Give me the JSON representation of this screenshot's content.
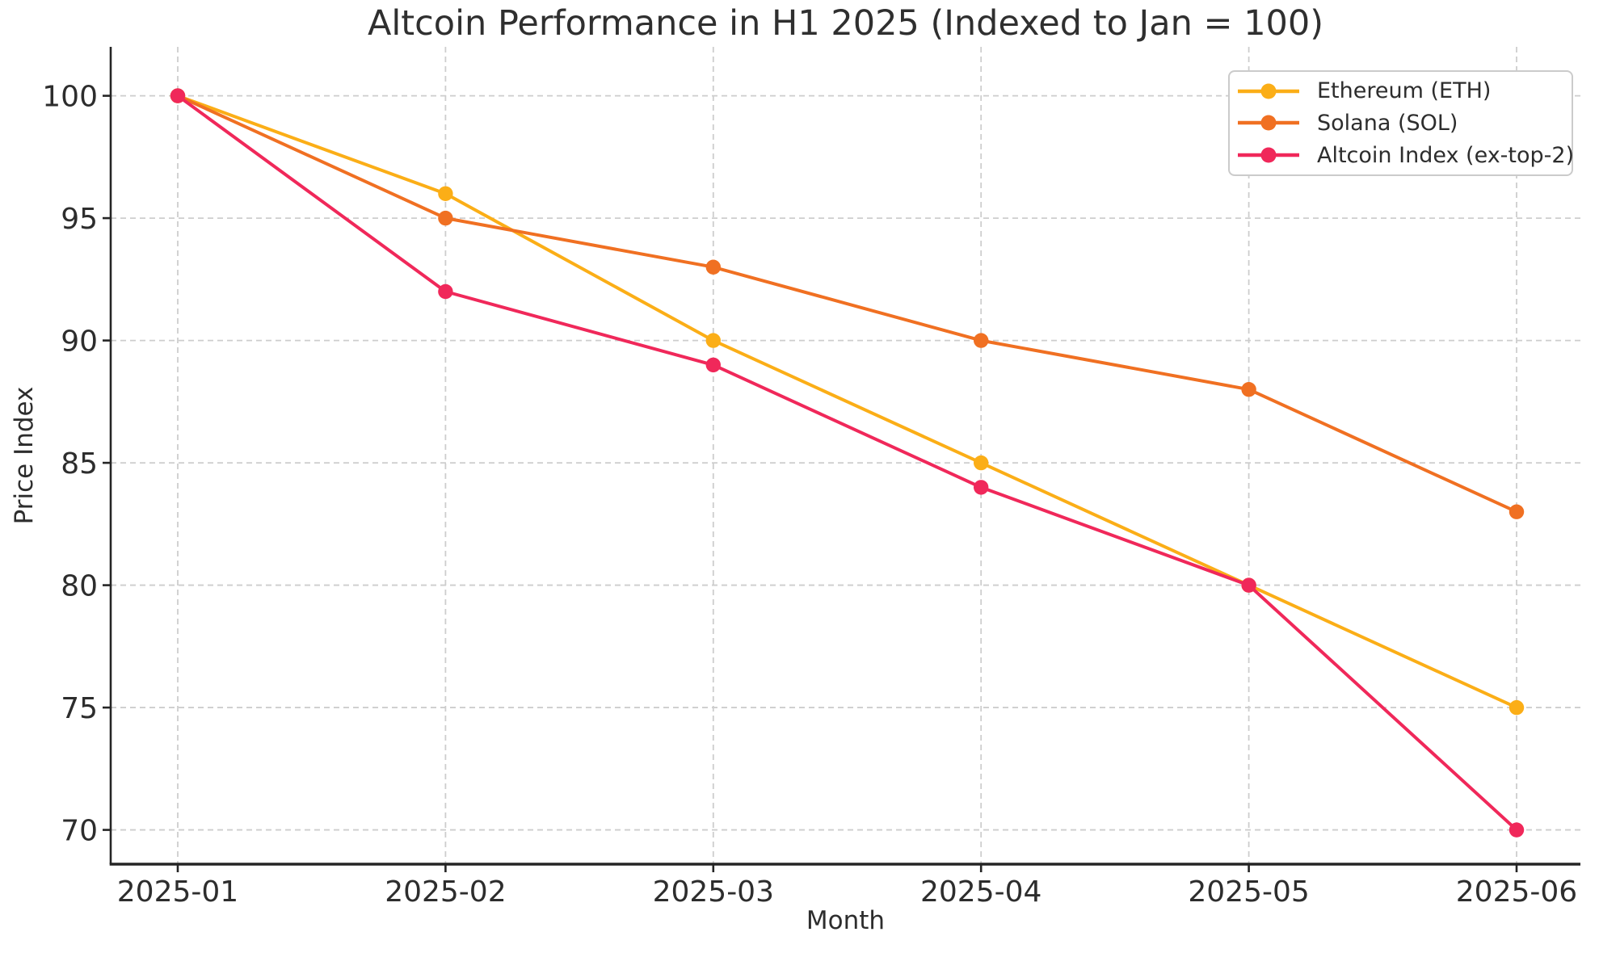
{
  "figure": {
    "background_color": "#ffffff",
    "text_color": "#2d2d2d",
    "grid_color": "#cdcdcd",
    "spine_color": "#252525"
  },
  "chart_data": {
    "type": "line",
    "title": "Altcoin Performance in H1 2025 (Indexed to Jan = 100)",
    "xlabel": "Month",
    "ylabel": "Price Index",
    "categories": [
      "2025-01",
      "2025-02",
      "2025-03",
      "2025-04",
      "2025-05",
      "2025-06"
    ],
    "y_ticks": [
      100,
      95,
      90,
      85,
      80,
      75,
      70
    ],
    "ylim": [
      68.6,
      102.0
    ],
    "grid": true,
    "grid_style": "dashed",
    "legend_position": "upper right",
    "marker": "circle",
    "series": [
      {
        "name": "Ethereum (ETH)",
        "color": "#FBAE17",
        "values": [
          100,
          96,
          90,
          85,
          80,
          75
        ]
      },
      {
        "name": "Solana (SOL)",
        "color": "#F07022",
        "values": [
          100,
          95,
          93,
          90,
          88,
          83
        ]
      },
      {
        "name": "Altcoin Index (ex-top-2)",
        "color": "#F0285A",
        "values": [
          100,
          92,
          89,
          84,
          80,
          70
        ]
      }
    ]
  }
}
